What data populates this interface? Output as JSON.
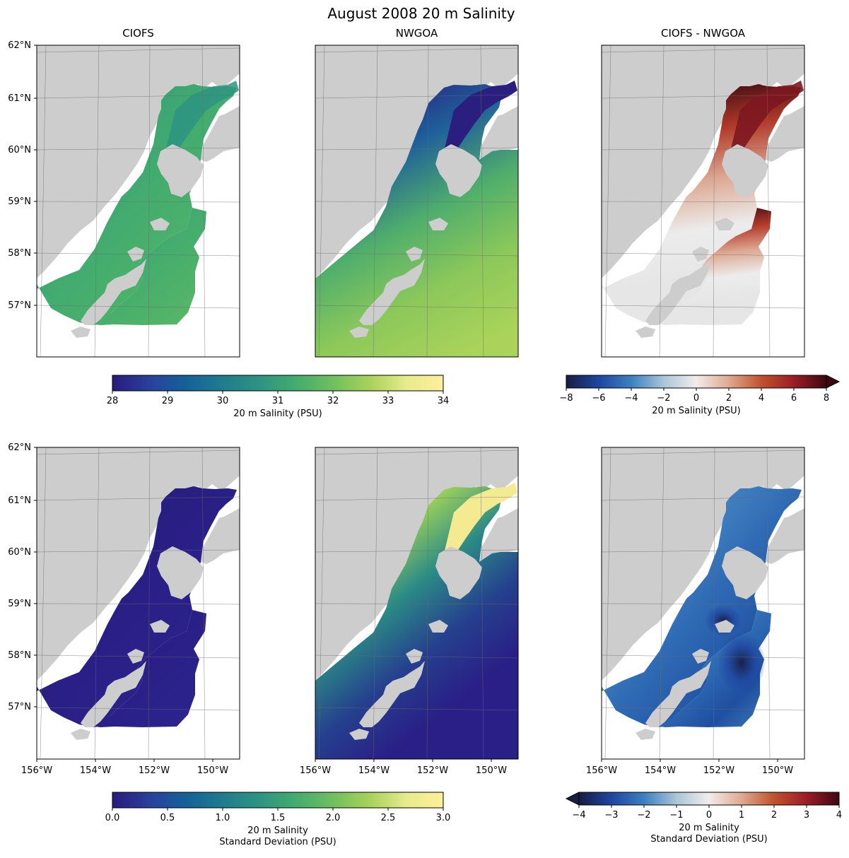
{
  "figure": {
    "title": "August 2008 20 m Salinity"
  },
  "panels": [
    {
      "id": "p0",
      "title": "CIOFS",
      "kind": "ciofs",
      "field": "mean"
    },
    {
      "id": "p1",
      "title": "NWGOA",
      "kind": "nwgoa",
      "field": "mean"
    },
    {
      "id": "p2",
      "title": "CIOFS - NWGOA",
      "kind": "diff",
      "field": "mean"
    },
    {
      "id": "p3",
      "title": "",
      "kind": "ciofs",
      "field": "std"
    },
    {
      "id": "p4",
      "title": "",
      "kind": "nwgoa",
      "field": "std"
    },
    {
      "id": "p5",
      "title": "",
      "kind": "diff",
      "field": "std"
    }
  ],
  "axes": {
    "lat_ticks": [
      "62°N",
      "61°N",
      "60°N",
      "59°N",
      "58°N",
      "57°N"
    ],
    "lon_ticks": [
      "156°W",
      "154°W",
      "152°W",
      "150°W"
    ]
  },
  "colorbars": [
    {
      "id": "cb1",
      "label": "20 m Salinity (PSU)",
      "ticks": [
        "28",
        "29",
        "30",
        "31",
        "32",
        "33",
        "34"
      ],
      "cmap": "haline",
      "extend": "none"
    },
    {
      "id": "cb2",
      "label": "20 m Salinity (PSU)",
      "ticks": [
        "−8",
        "−6",
        "−4",
        "−2",
        "0",
        "2",
        "4",
        "6",
        "8"
      ],
      "cmap": "balance",
      "extend": "max"
    },
    {
      "id": "cb3",
      "label": "20 m Salinity",
      "label2": "Standard Deviation (PSU)",
      "ticks": [
        "0.0",
        "0.5",
        "1.0",
        "1.5",
        "2.0",
        "2.5",
        "3.0"
      ],
      "cmap": "haline",
      "extend": "none"
    },
    {
      "id": "cb4",
      "label": "20 m Salinity",
      "label2": "Standard Deviation (PSU)",
      "ticks": [
        "−4",
        "−3",
        "−2",
        "−1",
        "0",
        "1",
        "2",
        "3",
        "4"
      ],
      "cmap": "balance",
      "extend": "min"
    }
  ],
  "chart_data": [
    {
      "type": "heatmap",
      "title": "CIOFS",
      "variable": "20 m Salinity (PSU)",
      "clim": [
        28,
        34
      ],
      "colormap": "haline",
      "typical_value": 32.2,
      "extent_lon": [
        -156,
        -149
      ],
      "extent_lat": [
        56,
        62
      ]
    },
    {
      "type": "heatmap",
      "title": "NWGOA",
      "variable": "20 m Salinity (PSU)",
      "clim": [
        28,
        34
      ],
      "colormap": "haline",
      "typical_value": 32.5,
      "extent_lon": [
        -156,
        -149
      ],
      "extent_lat": [
        56,
        62
      ]
    },
    {
      "type": "heatmap",
      "title": "CIOFS - NWGOA",
      "variable": "20 m Salinity (PSU)",
      "clim": [
        -8,
        8
      ],
      "colormap": "balance",
      "typical_value": 0.3,
      "extent_lon": [
        -156,
        -149
      ],
      "extent_lat": [
        56,
        62
      ]
    },
    {
      "type": "heatmap",
      "title": "",
      "variable": "20 m Salinity Standard Deviation (PSU)",
      "clim": [
        0,
        3
      ],
      "colormap": "haline",
      "typical_value": 0.15,
      "extent_lon": [
        -156,
        -149
      ],
      "extent_lat": [
        56,
        62
      ]
    },
    {
      "type": "heatmap",
      "title": "",
      "variable": "20 m Salinity Standard Deviation (PSU)",
      "clim": [
        0,
        3
      ],
      "colormap": "haline",
      "typical_value": 0.8,
      "extent_lon": [
        -156,
        -149
      ],
      "extent_lat": [
        56,
        62
      ]
    },
    {
      "type": "heatmap",
      "title": "",
      "variable": "20 m Salinity Standard Deviation (PSU)",
      "clim": [
        -4,
        4
      ],
      "colormap": "balance",
      "typical_value": -0.8,
      "extent_lon": [
        -156,
        -149
      ],
      "extent_lat": [
        56,
        62
      ]
    }
  ],
  "colors": {
    "land": "#cdcdcd",
    "haline": [
      "#2a1a7c",
      "#29409c",
      "#14619a",
      "#1f7c8e",
      "#2d9482",
      "#43ac6e",
      "#6fbf5e",
      "#a8d25a",
      "#e7eb8c",
      "#fdef9a"
    ],
    "balance": [
      "#181c43",
      "#1f46a0",
      "#3c80c0",
      "#a9c6d7",
      "#f1ecec",
      "#dfa98f",
      "#c0522c",
      "#9c1c26",
      "#3c0912"
    ]
  }
}
